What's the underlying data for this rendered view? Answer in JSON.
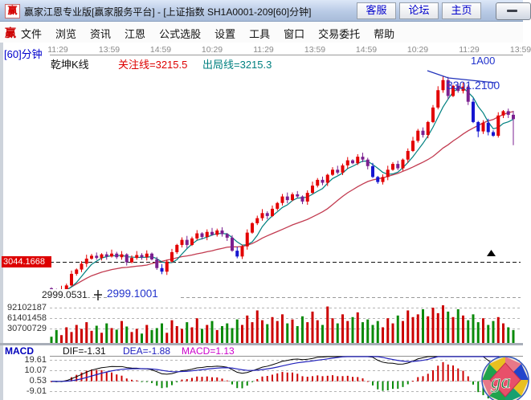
{
  "window": {
    "icon": "赢",
    "title": "赢家江恩专业版[赢家服务平台] - [上证指数  SH1A0001-209[60]分钟]",
    "buttons": [
      "客服",
      "论坛",
      "主页"
    ]
  },
  "menu": {
    "logo": "赢",
    "items": [
      "文件",
      "浏览",
      "资讯",
      "江恩",
      "公式选股",
      "设置",
      "工具",
      "窗口",
      "交易委托",
      "帮助"
    ]
  },
  "chart": {
    "period_label": "[60]分钟",
    "time_axis": [
      "11:29",
      "13:59",
      "14:59",
      "10:29",
      "11:29",
      "13:59",
      "14:59",
      "10:29",
      "11:29",
      "13:59"
    ],
    "header": {
      "kline_label": "乾坤K线",
      "watch_line_label": "关注线=3215.5",
      "exit_line_label": "出局线=3215.3",
      "symbol_label": "1A00"
    },
    "annotations": {
      "peak_label": "3301.2100",
      "price_marker_label": "3044.1668",
      "low_left_label": "2999.0531",
      "low_right_label": "2999.1001"
    },
    "volume_axis": [
      "92102187",
      "61401458",
      "30700729"
    ],
    "macd_header": {
      "pane_label": "MACD",
      "dif_label": "DIF=-1.31",
      "dea_label": "DEA=-1.88",
      "macd_label": "MACD=1.13"
    },
    "macd_axis": [
      "19.61",
      "10.07",
      "0.53",
      "-9.01"
    ],
    "logo_text": "ga"
  },
  "colors": {
    "up": "#e30000",
    "down_purple": "#7b2090",
    "down_blue": "#1616d0",
    "ma_fast": "#008080",
    "ma_slow": "#c23b50",
    "vol_up": "#cc0000",
    "vol_down": "#0a8a0a",
    "hist_pos": "#cc0000",
    "hist_neg": "#0a8a0a",
    "dif_line": "#000000",
    "dea_line": "#2222bb",
    "grid": "#b4b4b4",
    "marker_line": "#111111"
  },
  "chart_data": {
    "type": "candlestick",
    "title": "上证指数 SH1A0001-209 [60]分钟 乾坤K线",
    "watch_line": 3215.5,
    "exit_line": 3215.3,
    "price_marker": 3044.1668,
    "peak_high": 3301.21,
    "start_low": 2999.1001,
    "left_axis_low": 2999.0531,
    "volume_ticks": [
      92102187,
      61401458,
      30700729
    ],
    "macd_ticks": [
      19.61,
      10.07,
      0.53,
      -9.01
    ],
    "macd_display": {
      "dif": -1.31,
      "dea": -1.88,
      "macd": 1.13
    },
    "closes": [
      3004,
      3000,
      3006,
      3012,
      3028,
      3034,
      3042,
      3049,
      3053,
      3050,
      3055,
      3052,
      3056,
      3051,
      3055,
      3044,
      3050,
      3054,
      3051,
      3056,
      3048,
      3036,
      3031,
      3045,
      3058,
      3068,
      3075,
      3068,
      3077,
      3084,
      3079,
      3086,
      3082,
      3088,
      3083,
      3078,
      3060,
      3052,
      3066,
      3085,
      3098,
      3105,
      3112,
      3108,
      3118,
      3126,
      3135,
      3130,
      3138,
      3135,
      3128,
      3140,
      3150,
      3158,
      3154,
      3165,
      3172,
      3168,
      3178,
      3185,
      3181,
      3190,
      3186,
      3177,
      3162,
      3155,
      3162,
      3172,
      3180,
      3174,
      3186,
      3198,
      3212,
      3226,
      3220,
      3238,
      3258,
      3282,
      3296,
      3274,
      3288,
      3281,
      3287,
      3266,
      3238,
      3225,
      3237,
      3224,
      3219,
      3247,
      3253,
      3248,
      3242
    ],
    "volumes_millions": [
      18,
      35,
      22,
      42,
      30,
      48,
      38,
      55,
      33,
      46,
      28,
      52,
      40,
      36,
      58,
      44,
      30,
      38,
      26,
      48,
      35,
      40,
      52,
      28,
      60,
      45,
      38,
      55,
      42,
      65,
      38,
      48,
      58,
      35,
      45,
      52,
      40,
      62,
      48,
      72,
      55,
      85,
      60,
      50,
      68,
      58,
      75,
      52,
      62,
      45,
      70,
      55,
      82,
      60,
      48,
      95,
      65,
      52,
      75,
      58,
      68,
      80,
      55,
      62,
      48,
      58,
      42,
      65,
      52,
      72,
      58,
      85,
      68,
      75,
      88,
      70,
      92,
      78,
      98,
      82,
      68,
      88,
      72,
      60,
      75,
      55,
      65,
      48,
      58,
      68,
      52,
      42,
      35
    ],
    "blue_down_candles": [
      22,
      37,
      64,
      65,
      84,
      85,
      87,
      88
    ]
  }
}
